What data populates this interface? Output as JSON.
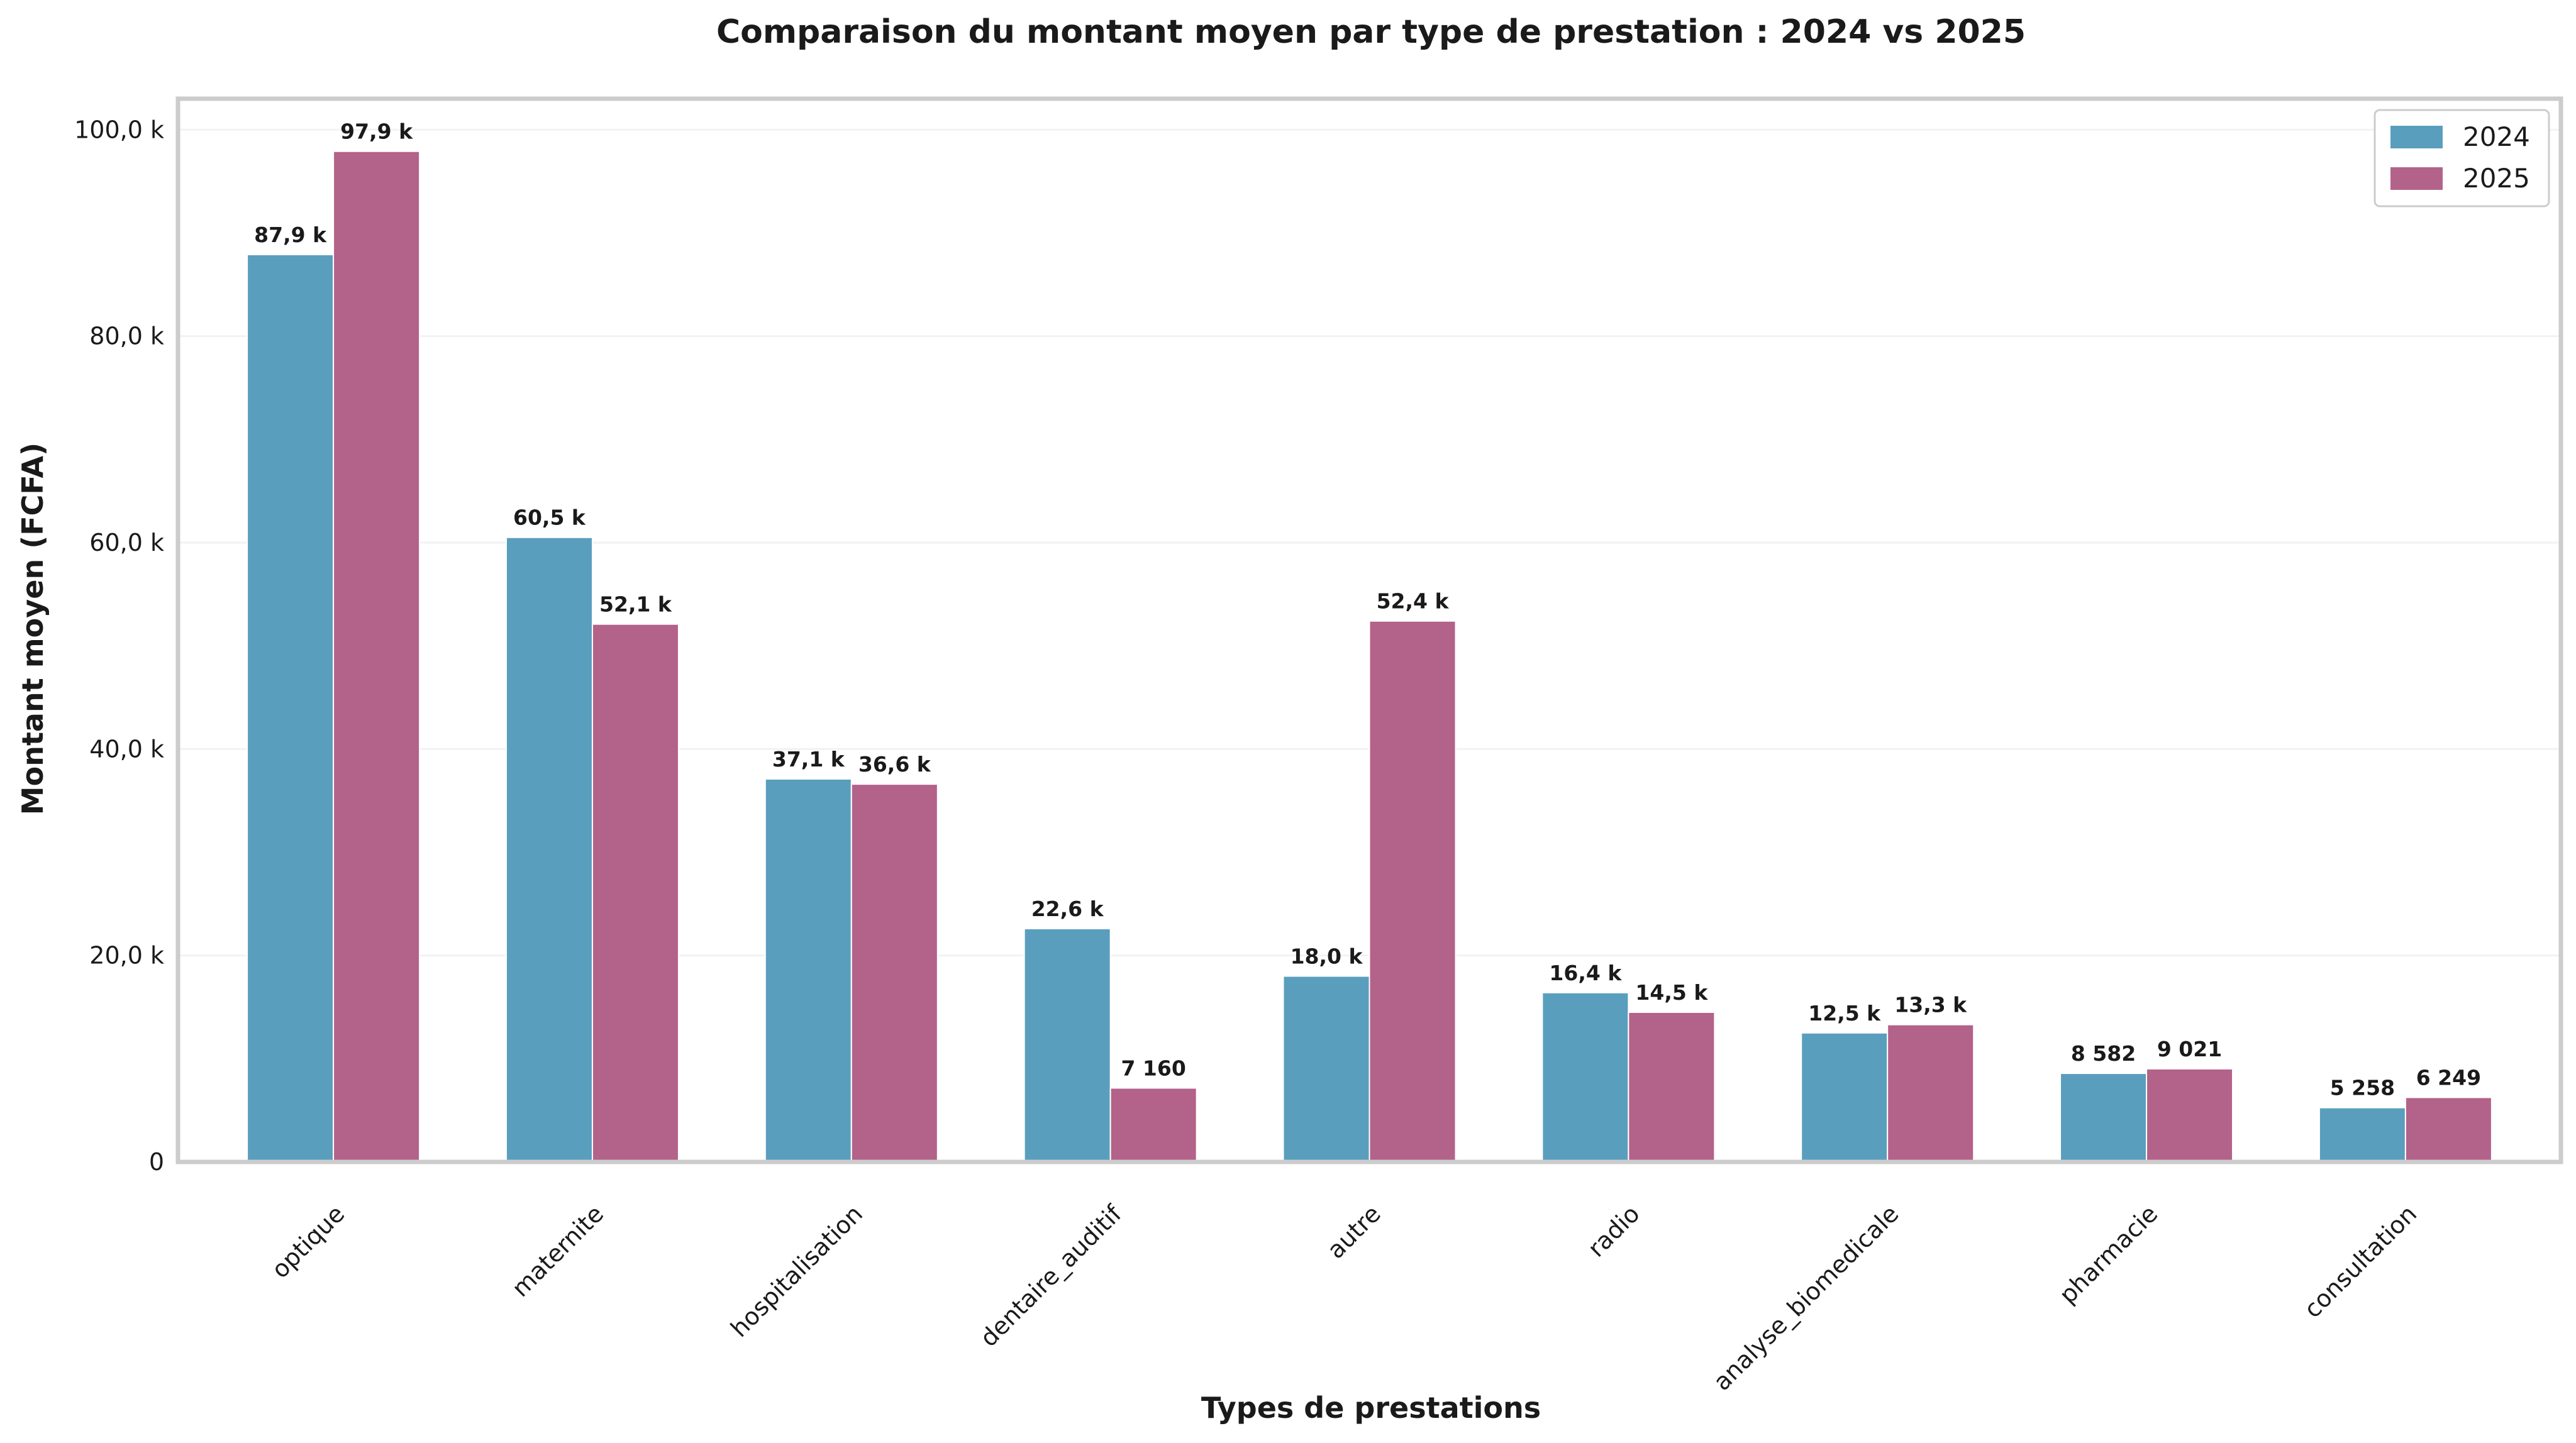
{
  "chart_data": {
    "type": "bar",
    "title": "Comparaison du montant moyen par type de prestation : 2024 vs 2025",
    "xlabel": "Types de prestations",
    "ylabel": "Montant moyen (FCFA)",
    "ylim": [
      0,
      103000
    ],
    "yticks": [
      0,
      20000,
      40000,
      60000,
      80000,
      100000
    ],
    "ytick_labels": [
      "0",
      "20,0 k",
      "40,0 k",
      "60,0 k",
      "80,0 k",
      "100,0 k"
    ],
    "grid": true,
    "legend_position": "top-right",
    "categories": [
      "optique",
      "maternite",
      "hospitalisation",
      "dentaire_auditif",
      "autre",
      "radio",
      "analyse_biomedicale",
      "pharmacie",
      "consultation"
    ],
    "series": [
      {
        "name": "2024",
        "color": "#5a9ebe",
        "values": [
          87900,
          60500,
          37100,
          22600,
          18000,
          16400,
          12500,
          8582,
          5258
        ],
        "labels": [
          "87,9 k",
          "60,5 k",
          "37,1 k",
          "22,6 k",
          "18,0 k",
          "16,4 k",
          "12,5 k",
          "8 582",
          "5 258"
        ]
      },
      {
        "name": "2025",
        "color": "#b3628a",
        "values": [
          97900,
          52100,
          36600,
          7160,
          52400,
          14500,
          13300,
          9021,
          6249
        ],
        "labels": [
          "97,9 k",
          "52,1 k",
          "36,6 k",
          "7 160",
          "52,4 k",
          "14,5 k",
          "13,3 k",
          "9 021",
          "6 249"
        ]
      }
    ]
  }
}
